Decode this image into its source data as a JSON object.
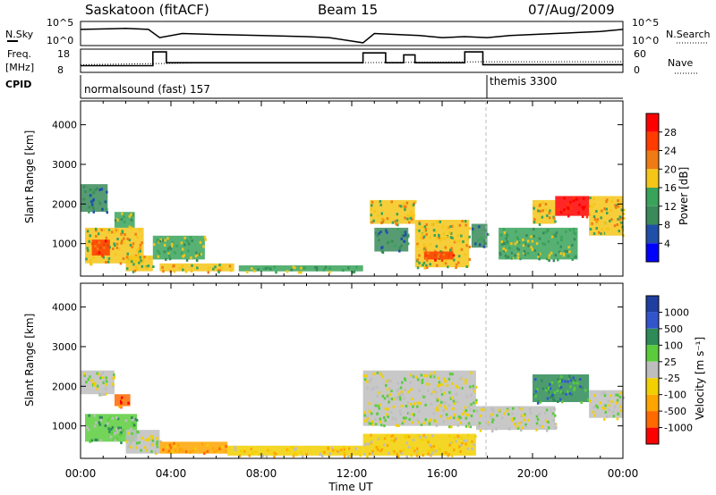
{
  "header": {
    "station": "Saskatoon (fitACF)",
    "beam": "Beam 15",
    "date": "07/Aug/2009"
  },
  "top_panels": {
    "nsky_label": "N.Sky",
    "nsky_ticks": [
      "10^5",
      "10^0"
    ],
    "nsearch_label": "N.Search",
    "nsearch_ticks": [
      "10^5",
      "10^0"
    ],
    "freq_label": "Freq.",
    "freq_unit": "[MHz]",
    "freq_ticks": [
      "18",
      "8"
    ],
    "nave_label": "Nave",
    "nave_ticks": [
      "60",
      "0"
    ],
    "cpid_label": "CPID",
    "cpid_programs": [
      {
        "name": "normalsound (fast) 157",
        "start_hour": 0
      },
      {
        "name": "themis 3300",
        "start_hour": 18
      }
    ]
  },
  "colors": {
    "power_scale": [
      "#0000ff",
      "#1f4fa8",
      "#3a8a5a",
      "#3aa35a",
      "#f5c518",
      "#f07b14",
      "#ff3b00",
      "#ff0000"
    ],
    "velocity_scale": [
      "#ff0000",
      "#ff6a00",
      "#ffa500",
      "#f2d000",
      "#bebebe",
      "#5acc3c",
      "#2e8b57",
      "#3355cc",
      "#1f3fa0"
    ],
    "trace": "#000000"
  },
  "chart_data": [
    {
      "type": "heatmap",
      "panel": "power",
      "ylabel": "Slant Range [km]",
      "yticks": [
        "1000",
        "2000",
        "3000",
        "4000"
      ],
      "ylim": [
        180,
        4600
      ],
      "xlim": [
        0,
        24
      ],
      "colorbar_label": "Power [dB]",
      "colorbar_ticks": [
        "4",
        "8",
        "12",
        "16",
        "20",
        "24",
        "28"
      ],
      "regions": [
        {
          "t": [
            0.0,
            1.2
          ],
          "r": [
            1800,
            2500
          ],
          "level": 2
        },
        {
          "t": [
            0.2,
            2.8
          ],
          "r": [
            500,
            1400
          ],
          "level": 4
        },
        {
          "t": [
            0.5,
            1.3
          ],
          "r": [
            700,
            1100
          ],
          "level": 6
        },
        {
          "t": [
            1.5,
            2.4
          ],
          "r": [
            1400,
            1800
          ],
          "level": 3
        },
        {
          "t": [
            2.0,
            3.2
          ],
          "r": [
            300,
            700
          ],
          "level": 4
        },
        {
          "t": [
            3.2,
            5.5
          ],
          "r": [
            600,
            1200
          ],
          "level": 3
        },
        {
          "t": [
            3.5,
            6.8
          ],
          "r": [
            300,
            500
          ],
          "level": 4
        },
        {
          "t": [
            7.0,
            12.5
          ],
          "r": [
            300,
            450
          ],
          "level": 3
        },
        {
          "t": [
            12.8,
            14.8
          ],
          "r": [
            1500,
            2100
          ],
          "level": 4
        },
        {
          "t": [
            13.0,
            14.5
          ],
          "r": [
            800,
            1400
          ],
          "level": 2
        },
        {
          "t": [
            14.8,
            17.2
          ],
          "r": [
            400,
            1600
          ],
          "level": 4
        },
        {
          "t": [
            15.2,
            16.5
          ],
          "r": [
            600,
            800
          ],
          "level": 6
        },
        {
          "t": [
            17.3,
            18.0
          ],
          "r": [
            900,
            1500
          ],
          "level": 2
        },
        {
          "t": [
            18.5,
            22.0
          ],
          "r": [
            600,
            1400
          ],
          "level": 3
        },
        {
          "t": [
            20.0,
            21.0
          ],
          "r": [
            1500,
            2100
          ],
          "level": 4
        },
        {
          "t": [
            21.0,
            22.5
          ],
          "r": [
            1700,
            2200
          ],
          "level": 7
        },
        {
          "t": [
            22.5,
            24.0
          ],
          "r": [
            1200,
            2200
          ],
          "level": 4
        }
      ]
    },
    {
      "type": "heatmap",
      "panel": "velocity",
      "xlabel": "Time UT",
      "ylabel": "Slant Range [km]",
      "xticks": [
        "00:00",
        "04:00",
        "08:00",
        "12:00",
        "16:00",
        "20:00",
        "00:00"
      ],
      "yticks": [
        "1000",
        "2000",
        "3000",
        "4000"
      ],
      "ylim": [
        180,
        4600
      ],
      "xlim": [
        0,
        24
      ],
      "colorbar_label": "Velocity [m s⁻¹]",
      "colorbar_ticks": [
        "1000",
        "500",
        "100",
        "25",
        "-25",
        "-100",
        "-500",
        "-1000"
      ],
      "regions": [
        {
          "t": [
            0.0,
            1.5
          ],
          "r": [
            1800,
            2400
          ],
          "level": 4
        },
        {
          "t": [
            0.2,
            2.5
          ],
          "r": [
            600,
            1300
          ],
          "level": 5
        },
        {
          "t": [
            1.5,
            2.2
          ],
          "r": [
            1500,
            1800
          ],
          "level": 1
        },
        {
          "t": [
            2.0,
            3.5
          ],
          "r": [
            300,
            900
          ],
          "level": 4
        },
        {
          "t": [
            3.5,
            6.5
          ],
          "r": [
            300,
            600
          ],
          "level": 2
        },
        {
          "t": [
            6.5,
            12.5
          ],
          "r": [
            250,
            500
          ],
          "level": 3
        },
        {
          "t": [
            12.5,
            17.5
          ],
          "r": [
            1000,
            2400
          ],
          "level": 4
        },
        {
          "t": [
            12.5,
            17.5
          ],
          "r": [
            250,
            800
          ],
          "level": 3
        },
        {
          "t": [
            17.5,
            21.0
          ],
          "r": [
            900,
            1500
          ],
          "level": 4
        },
        {
          "t": [
            20.0,
            22.5
          ],
          "r": [
            1600,
            2300
          ],
          "level": 6
        },
        {
          "t": [
            22.5,
            24.0
          ],
          "r": [
            1200,
            1900
          ],
          "level": 4
        }
      ]
    }
  ],
  "nsky_trace": [
    [
      0,
      0.7
    ],
    [
      1,
      0.72
    ],
    [
      2,
      0.75
    ],
    [
      3,
      0.7
    ],
    [
      3.5,
      0.3
    ],
    [
      4.5,
      0.5
    ],
    [
      6,
      0.45
    ],
    [
      8,
      0.4
    ],
    [
      10,
      0.35
    ],
    [
      11,
      0.3
    ],
    [
      12.5,
      0.05
    ],
    [
      13,
      0.5
    ],
    [
      14,
      0.45
    ],
    [
      15,
      0.4
    ],
    [
      16,
      0.3
    ],
    [
      17,
      0.35
    ],
    [
      18,
      0.3
    ],
    [
      19,
      0.4
    ],
    [
      20,
      0.45
    ],
    [
      21,
      0.5
    ],
    [
      22,
      0.55
    ],
    [
      23,
      0.6
    ],
    [
      24,
      0.7
    ]
  ],
  "freq_trace": [
    [
      0,
      0.25
    ],
    [
      3.2,
      0.25
    ],
    [
      3.2,
      0.95
    ],
    [
      3.8,
      0.95
    ],
    [
      3.8,
      0.4
    ],
    [
      12.5,
      0.4
    ],
    [
      12.5,
      0.9
    ],
    [
      13.5,
      0.9
    ],
    [
      13.5,
      0.4
    ],
    [
      14.3,
      0.4
    ],
    [
      14.3,
      0.8
    ],
    [
      14.8,
      0.8
    ],
    [
      14.8,
      0.4
    ],
    [
      17.0,
      0.4
    ],
    [
      17.0,
      0.95
    ],
    [
      17.8,
      0.95
    ],
    [
      17.8,
      0.3
    ],
    [
      24,
      0.3
    ]
  ],
  "nave_trace": [
    [
      0,
      0.3
    ],
    [
      3,
      0.35
    ],
    [
      6,
      0.4
    ],
    [
      12,
      0.4
    ],
    [
      18,
      0.45
    ],
    [
      24,
      0.45
    ]
  ]
}
